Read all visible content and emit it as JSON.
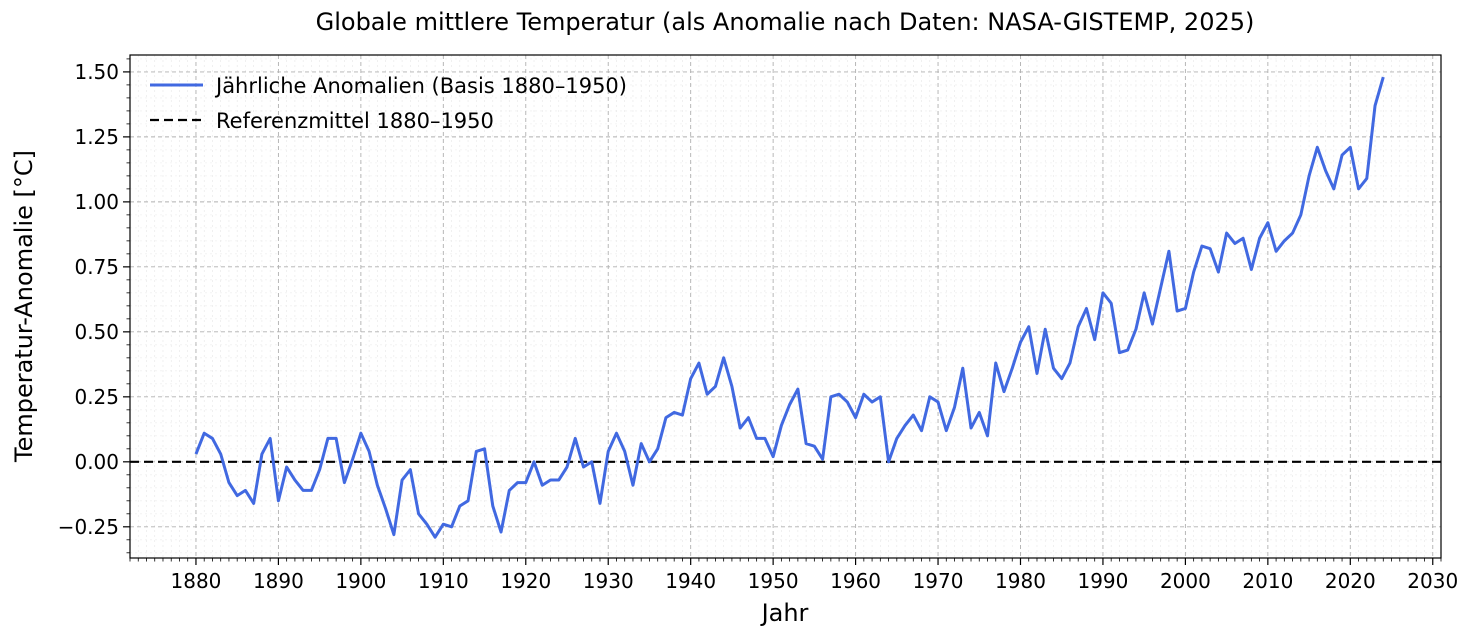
{
  "chart_data": {
    "type": "line",
    "title": "Globale mittlere Temperatur (als Anomalie nach Daten: NASA-GISTEMP, 2025)",
    "xlabel": "Jahr",
    "ylabel": "Temperatur-Anomalie [°C]",
    "xlim": [
      1872,
      2031
    ],
    "ylim": [
      -0.37,
      1.565
    ],
    "xticks": [
      1880,
      1890,
      1900,
      1910,
      1920,
      1930,
      1940,
      1950,
      1960,
      1970,
      1980,
      1990,
      2000,
      2010,
      2020,
      2030
    ],
    "yticks": [
      -0.25,
      0.0,
      0.25,
      0.5,
      0.75,
      1.0,
      1.25,
      1.5
    ],
    "ytick_labels": [
      "−0.25",
      "0.00",
      "0.25",
      "0.50",
      "0.75",
      "1.00",
      "1.25",
      "1.50"
    ],
    "grid": true,
    "legend_position": "top-left",
    "colors": {
      "series": "#4169e1",
      "reference": "#000000",
      "grid": "#b0b0b0"
    },
    "series": [
      {
        "name": "Jährliche Anomalien (Basis 1880–1950)",
        "x": [
          1880,
          1881,
          1882,
          1883,
          1884,
          1885,
          1886,
          1887,
          1888,
          1889,
          1890,
          1891,
          1892,
          1893,
          1894,
          1895,
          1896,
          1897,
          1898,
          1899,
          1900,
          1901,
          1902,
          1903,
          1904,
          1905,
          1906,
          1907,
          1908,
          1909,
          1910,
          1911,
          1912,
          1913,
          1914,
          1915,
          1916,
          1917,
          1918,
          1919,
          1920,
          1921,
          1922,
          1923,
          1924,
          1925,
          1926,
          1927,
          1928,
          1929,
          1930,
          1931,
          1932,
          1933,
          1934,
          1935,
          1936,
          1937,
          1938,
          1939,
          1940,
          1941,
          1942,
          1943,
          1944,
          1945,
          1946,
          1947,
          1948,
          1949,
          1950,
          1951,
          1952,
          1953,
          1954,
          1955,
          1956,
          1957,
          1958,
          1959,
          1960,
          1961,
          1962,
          1963,
          1964,
          1965,
          1966,
          1967,
          1968,
          1969,
          1970,
          1971,
          1972,
          1973,
          1974,
          1975,
          1976,
          1977,
          1978,
          1979,
          1980,
          1981,
          1982,
          1983,
          1984,
          1985,
          1986,
          1987,
          1988,
          1989,
          1990,
          1991,
          1992,
          1993,
          1994,
          1995,
          1996,
          1997,
          1998,
          1999,
          2000,
          2001,
          2002,
          2003,
          2004,
          2005,
          2006,
          2007,
          2008,
          2009,
          2010,
          2011,
          2012,
          2013,
          2014,
          2015,
          2016,
          2017,
          2018,
          2019,
          2020,
          2021,
          2022,
          2023,
          2024
        ],
        "y": [
          0.03,
          0.11,
          0.09,
          0.03,
          -0.08,
          -0.13,
          -0.11,
          -0.16,
          0.03,
          0.09,
          -0.15,
          -0.02,
          -0.07,
          -0.11,
          -0.11,
          -0.03,
          0.09,
          0.09,
          -0.08,
          0.01,
          0.11,
          0.04,
          -0.09,
          -0.18,
          -0.28,
          -0.07,
          -0.03,
          -0.2,
          -0.24,
          -0.29,
          -0.24,
          -0.25,
          -0.17,
          -0.15,
          0.04,
          0.05,
          -0.17,
          -0.27,
          -0.11,
          -0.08,
          -0.08,
          0.0,
          -0.09,
          -0.07,
          -0.07,
          -0.02,
          0.09,
          -0.02,
          0.0,
          -0.16,
          0.04,
          0.11,
          0.04,
          -0.09,
          0.07,
          0.0,
          0.05,
          0.17,
          0.19,
          0.18,
          0.32,
          0.38,
          0.26,
          0.29,
          0.4,
          0.29,
          0.13,
          0.17,
          0.09,
          0.09,
          0.02,
          0.14,
          0.22,
          0.28,
          0.07,
          0.06,
          0.01,
          0.25,
          0.26,
          0.23,
          0.17,
          0.26,
          0.23,
          0.25,
          0.0,
          0.09,
          0.14,
          0.18,
          0.12,
          0.25,
          0.23,
          0.12,
          0.21,
          0.36,
          0.13,
          0.19,
          0.1,
          0.38,
          0.27,
          0.36,
          0.46,
          0.52,
          0.34,
          0.51,
          0.36,
          0.32,
          0.38,
          0.52,
          0.59,
          0.47,
          0.65,
          0.61,
          0.42,
          0.43,
          0.51,
          0.65,
          0.53,
          0.67,
          0.81,
          0.58,
          0.59,
          0.73,
          0.83,
          0.82,
          0.73,
          0.88,
          0.84,
          0.86,
          0.74,
          0.86,
          0.92,
          0.81,
          0.85,
          0.88,
          0.95,
          1.1,
          1.21,
          1.12,
          1.05,
          1.18,
          1.21,
          1.05,
          1.09,
          1.37,
          1.48
        ]
      },
      {
        "name": "Referenzmittel 1880–1950",
        "y": 0.0
      }
    ]
  }
}
